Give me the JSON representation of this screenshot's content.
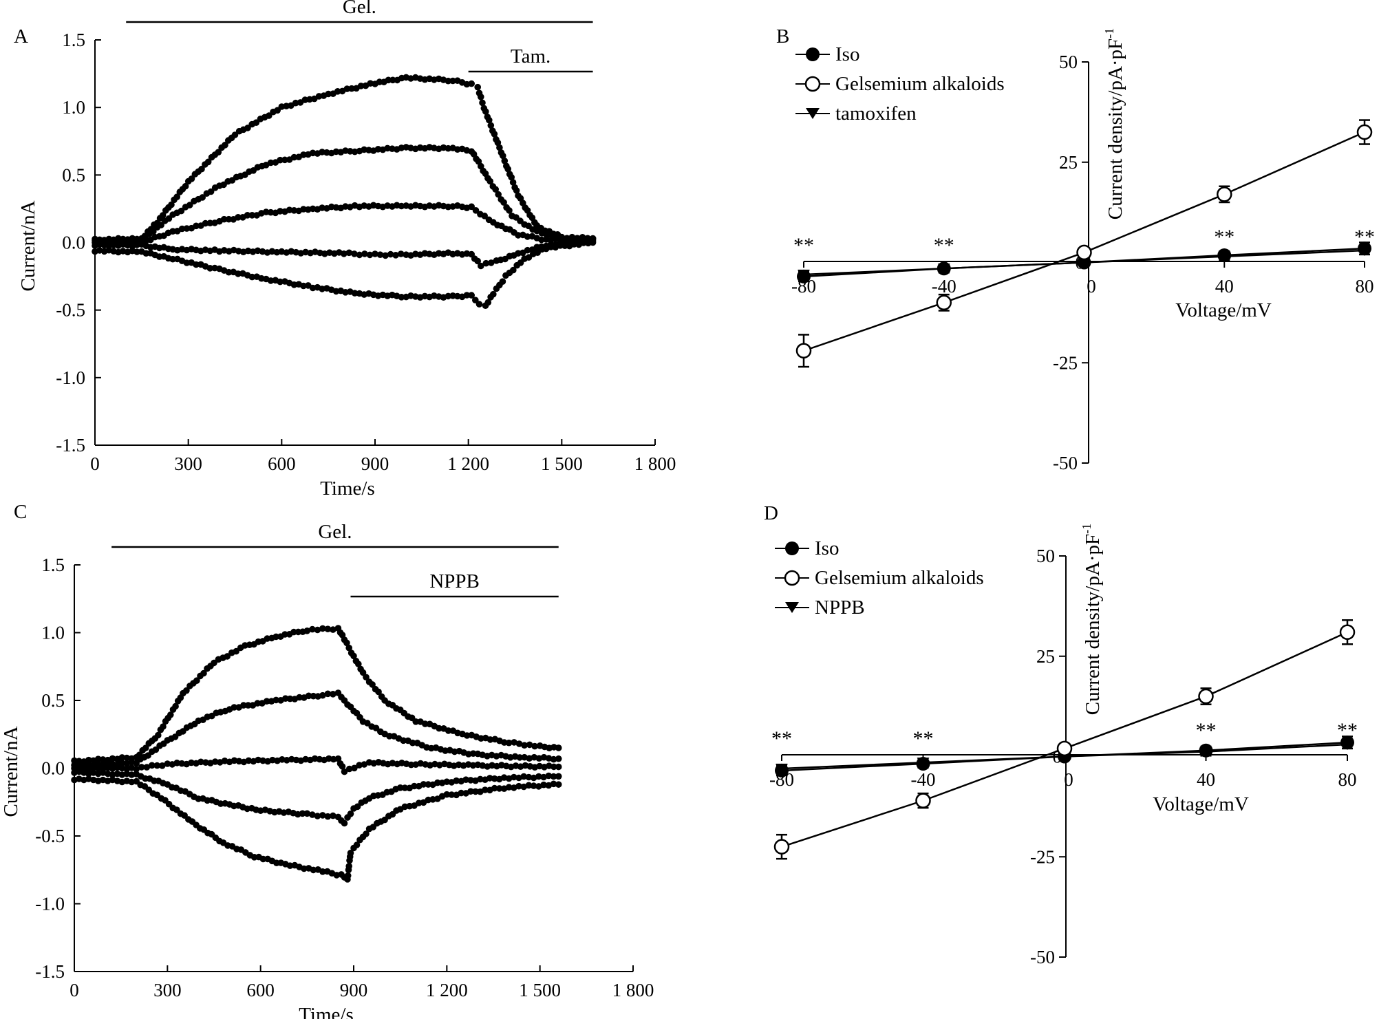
{
  "chart_data": [
    {
      "panel": "A",
      "type": "scatter",
      "xlabel": "Time/s",
      "ylabel": "Current/nA",
      "xlim": [
        0,
        1800
      ],
      "ylim": [
        -1.5,
        1.5
      ],
      "xticks": [
        0,
        300,
        600,
        900,
        1200,
        1500,
        1800
      ],
      "xtick_labels": [
        "0",
        "300",
        "600",
        "900",
        "1 200",
        "1 500",
        "1 800"
      ],
      "yticks": [
        -1.5,
        -1.0,
        -0.5,
        0.0,
        0.5,
        1.0,
        1.5
      ],
      "ytick_labels": [
        "-1.5",
        "-1.0",
        "-0.5",
        "0.0",
        "0.5",
        "1.0",
        "1.5"
      ],
      "bars": [
        {
          "label": "Gel.",
          "start": 100,
          "end": 1600
        },
        {
          "label": "Tam.",
          "start": 1200,
          "end": 1600
        }
      ],
      "series": [
        {
          "name": "trace-1",
          "points": [
            [
              0,
              0.02
            ],
            [
              150,
              0.03
            ],
            [
              200,
              0.15
            ],
            [
              300,
              0.45
            ],
            [
              450,
              0.8
            ],
            [
              600,
              1.0
            ],
            [
              750,
              1.1
            ],
            [
              900,
              1.18
            ],
            [
              1000,
              1.22
            ],
            [
              1150,
              1.2
            ],
            [
              1210,
              1.17
            ],
            [
              1230,
              1.15
            ],
            [
              1250,
              1.0
            ],
            [
              1300,
              0.7
            ],
            [
              1360,
              0.35
            ],
            [
              1420,
              0.12
            ],
            [
              1500,
              0.04
            ],
            [
              1600,
              0.03
            ]
          ]
        },
        {
          "name": "trace-2",
          "points": [
            [
              0,
              0.01
            ],
            [
              150,
              0.02
            ],
            [
              250,
              0.2
            ],
            [
              400,
              0.42
            ],
            [
              550,
              0.58
            ],
            [
              700,
              0.66
            ],
            [
              850,
              0.68
            ],
            [
              1000,
              0.7
            ],
            [
              1150,
              0.7
            ],
            [
              1210,
              0.68
            ],
            [
              1270,
              0.45
            ],
            [
              1340,
              0.2
            ],
            [
              1420,
              0.08
            ],
            [
              1500,
              0.03
            ],
            [
              1600,
              0.03
            ]
          ]
        },
        {
          "name": "trace-3",
          "points": [
            [
              0,
              0.0
            ],
            [
              150,
              0.0
            ],
            [
              250,
              0.08
            ],
            [
              400,
              0.16
            ],
            [
              550,
              0.22
            ],
            [
              700,
              0.25
            ],
            [
              850,
              0.27
            ],
            [
              1000,
              0.27
            ],
            [
              1150,
              0.27
            ],
            [
              1210,
              0.26
            ],
            [
              1280,
              0.15
            ],
            [
              1360,
              0.06
            ],
            [
              1450,
              0.02
            ],
            [
              1600,
              0.02
            ]
          ]
        },
        {
          "name": "trace-4",
          "points": [
            [
              0,
              -0.02
            ],
            [
              150,
              -0.02
            ],
            [
              250,
              -0.05
            ],
            [
              400,
              -0.06
            ],
            [
              600,
              -0.07
            ],
            [
              800,
              -0.08
            ],
            [
              900,
              -0.09
            ],
            [
              1000,
              -0.09
            ],
            [
              1150,
              -0.08
            ],
            [
              1210,
              -0.09
            ],
            [
              1240,
              -0.17
            ],
            [
              1290,
              -0.14
            ],
            [
              1360,
              -0.08
            ],
            [
              1450,
              -0.02
            ],
            [
              1600,
              0.01
            ]
          ]
        },
        {
          "name": "trace-5",
          "points": [
            [
              0,
              -0.06
            ],
            [
              150,
              -0.07
            ],
            [
              250,
              -0.12
            ],
            [
              400,
              -0.2
            ],
            [
              550,
              -0.27
            ],
            [
              700,
              -0.33
            ],
            [
              850,
              -0.38
            ],
            [
              1000,
              -0.4
            ],
            [
              1150,
              -0.4
            ],
            [
              1210,
              -0.39
            ],
            [
              1235,
              -0.45
            ],
            [
              1255,
              -0.47
            ],
            [
              1280,
              -0.38
            ],
            [
              1320,
              -0.25
            ],
            [
              1380,
              -0.12
            ],
            [
              1450,
              -0.04
            ],
            [
              1600,
              0.0
            ]
          ]
        }
      ]
    },
    {
      "panel": "B",
      "type": "line",
      "xlabel": "Voltage/mV",
      "ylabel": "Current density/pA·pF",
      "ylabel_superscript": "-1",
      "xlim": [
        -80,
        80
      ],
      "ylim": [
        -50,
        50
      ],
      "xticks": [
        -80,
        -40,
        0,
        40,
        80
      ],
      "xtick_labels": [
        "-80",
        "-40",
        "0",
        "40",
        "80"
      ],
      "yticks": [
        -50,
        -25,
        0,
        25,
        50
      ],
      "ytick_labels": [
        "-50",
        "-25",
        "0",
        "25",
        "50"
      ],
      "legend": [
        "Iso",
        "Gelsemium alkaloids",
        "tamoxifen"
      ],
      "series": [
        {
          "name": "Iso",
          "marker": "filled-circle",
          "x": [
            -80,
            -40,
            0,
            40,
            80
          ],
          "y": [
            -3.5,
            -1.5,
            0,
            1.8,
            3.5
          ],
          "err": [
            1.2,
            1.0,
            0.5,
            1.0,
            1.5
          ]
        },
        {
          "name": "Gelsemium alkaloids",
          "marker": "open-circle",
          "x": [
            -80,
            -40,
            0,
            40,
            80
          ],
          "y": [
            -22,
            -10,
            2.5,
            17,
            32.5
          ],
          "err": [
            4,
            2,
            1,
            2,
            3
          ]
        },
        {
          "name": "tamoxifen",
          "marker": "filled-triangle",
          "x": [
            -80,
            -40,
            0,
            40,
            80
          ],
          "y": [
            -3,
            -1.5,
            0,
            1.5,
            3
          ],
          "err": [
            1,
            1,
            0.5,
            1,
            1
          ]
        }
      ],
      "significance": [
        {
          "x": -80,
          "label": "**"
        },
        {
          "x": -40,
          "label": "**"
        },
        {
          "x": 40,
          "label": "**"
        },
        {
          "x": 80,
          "label": "**"
        }
      ]
    },
    {
      "panel": "C",
      "type": "scatter",
      "xlabel": "Time/s",
      "ylabel": "Current/nA",
      "xlim": [
        0,
        1800
      ],
      "ylim": [
        -1.5,
        1.5
      ],
      "xticks": [
        0,
        300,
        600,
        900,
        1200,
        1500,
        1800
      ],
      "xtick_labels": [
        "0",
        "300",
        "600",
        "900",
        "1 200",
        "1 500",
        "1 800"
      ],
      "yticks": [
        -1.5,
        -1.0,
        -0.5,
        0.0,
        0.5,
        1.0,
        1.5
      ],
      "ytick_labels": [
        "-1.5",
        "-1.0",
        "-0.5",
        "0.0",
        "0.5",
        "1.0",
        "1.5"
      ],
      "bars": [
        {
          "label": "Gel.",
          "start": 120,
          "end": 1560
        },
        {
          "label": "NPPB",
          "start": 890,
          "end": 1560
        }
      ],
      "series": [
        {
          "name": "trace-1",
          "points": [
            [
              0,
              0.05
            ],
            [
              200,
              0.08
            ],
            [
              270,
              0.25
            ],
            [
              350,
              0.55
            ],
            [
              450,
              0.78
            ],
            [
              550,
              0.9
            ],
            [
              650,
              0.97
            ],
            [
              750,
              1.02
            ],
            [
              850,
              1.03
            ],
            [
              870,
              0.95
            ],
            [
              930,
              0.7
            ],
            [
              1000,
              0.5
            ],
            [
              1100,
              0.35
            ],
            [
              1250,
              0.25
            ],
            [
              1400,
              0.19
            ],
            [
              1500,
              0.16
            ],
            [
              1560,
              0.15
            ]
          ]
        },
        {
          "name": "trace-2",
          "points": [
            [
              0,
              0.02
            ],
            [
              200,
              0.04
            ],
            [
              300,
              0.2
            ],
            [
              400,
              0.35
            ],
            [
              500,
              0.44
            ],
            [
              650,
              0.5
            ],
            [
              800,
              0.54
            ],
            [
              850,
              0.55
            ],
            [
              870,
              0.5
            ],
            [
              930,
              0.35
            ],
            [
              1000,
              0.25
            ],
            [
              1150,
              0.15
            ],
            [
              1300,
              0.1
            ],
            [
              1450,
              0.08
            ],
            [
              1560,
              0.07
            ]
          ]
        },
        {
          "name": "trace-3",
          "points": [
            [
              0,
              0.0
            ],
            [
              200,
              0.0
            ],
            [
              300,
              0.03
            ],
            [
              500,
              0.05
            ],
            [
              700,
              0.06
            ],
            [
              850,
              0.07
            ],
            [
              870,
              -0.02
            ],
            [
              950,
              0.04
            ],
            [
              1100,
              0.03
            ],
            [
              1300,
              0.02
            ],
            [
              1560,
              0.01
            ]
          ]
        },
        {
          "name": "trace-4",
          "points": [
            [
              0,
              -0.03
            ],
            [
              200,
              -0.05
            ],
            [
              300,
              -0.12
            ],
            [
              400,
              -0.22
            ],
            [
              500,
              -0.27
            ],
            [
              600,
              -0.31
            ],
            [
              750,
              -0.34
            ],
            [
              850,
              -0.36
            ],
            [
              870,
              -0.4
            ],
            [
              900,
              -0.3
            ],
            [
              950,
              -0.22
            ],
            [
              1050,
              -0.15
            ],
            [
              1200,
              -0.1
            ],
            [
              1400,
              -0.07
            ],
            [
              1560,
              -0.06
            ]
          ]
        },
        {
          "name": "trace-5",
          "points": [
            [
              0,
              -0.08
            ],
            [
              200,
              -0.1
            ],
            [
              280,
              -0.22
            ],
            [
              380,
              -0.4
            ],
            [
              480,
              -0.55
            ],
            [
              580,
              -0.65
            ],
            [
              680,
              -0.71
            ],
            [
              800,
              -0.76
            ],
            [
              860,
              -0.79
            ],
            [
              880,
              -0.82
            ],
            [
              890,
              -0.62
            ],
            [
              950,
              -0.45
            ],
            [
              1050,
              -0.3
            ],
            [
              1200,
              -0.2
            ],
            [
              1400,
              -0.14
            ],
            [
              1560,
              -0.12
            ]
          ]
        }
      ]
    },
    {
      "panel": "D",
      "type": "line",
      "xlabel": "Voltage/mV",
      "ylabel": "Current density/pA·pF",
      "ylabel_superscript": "-1",
      "xlim": [
        -80,
        80
      ],
      "ylim": [
        -50,
        50
      ],
      "xticks": [
        -80,
        -40,
        0,
        40,
        80
      ],
      "xtick_labels": [
        "-80",
        "-40",
        "0",
        "40",
        "80"
      ],
      "yticks": [
        -50,
        -25,
        0,
        25,
        50
      ],
      "ytick_labels": [
        "-50",
        "-25",
        "0",
        "25",
        "50"
      ],
      "legend": [
        "Iso",
        "Gelsemium alkaloids",
        "NPPB"
      ],
      "series": [
        {
          "name": "Iso",
          "marker": "filled-circle",
          "x": [
            -80,
            -40,
            0,
            40,
            80
          ],
          "y": [
            -3.5,
            -1.8,
            0,
            1.5,
            3.5
          ],
          "err": [
            1.2,
            1.0,
            0.5,
            1.0,
            1.5
          ]
        },
        {
          "name": "Gelsemium alkaloids",
          "marker": "open-circle",
          "x": [
            -80,
            -40,
            0,
            40,
            80
          ],
          "y": [
            -22.5,
            -11,
            2,
            15,
            31
          ],
          "err": [
            3,
            1.8,
            1,
            2,
            3
          ]
        },
        {
          "name": "NPPB",
          "marker": "filled-triangle",
          "x": [
            -80,
            -40,
            0,
            40,
            80
          ],
          "y": [
            -3,
            -1.5,
            0,
            1.2,
            3
          ],
          "err": [
            1,
            1,
            0.5,
            1,
            1
          ]
        }
      ],
      "significance": [
        {
          "x": -80,
          "label": "**"
        },
        {
          "x": -40,
          "label": "**"
        },
        {
          "x": 40,
          "label": "**"
        },
        {
          "x": 80,
          "label": "**"
        }
      ]
    }
  ]
}
